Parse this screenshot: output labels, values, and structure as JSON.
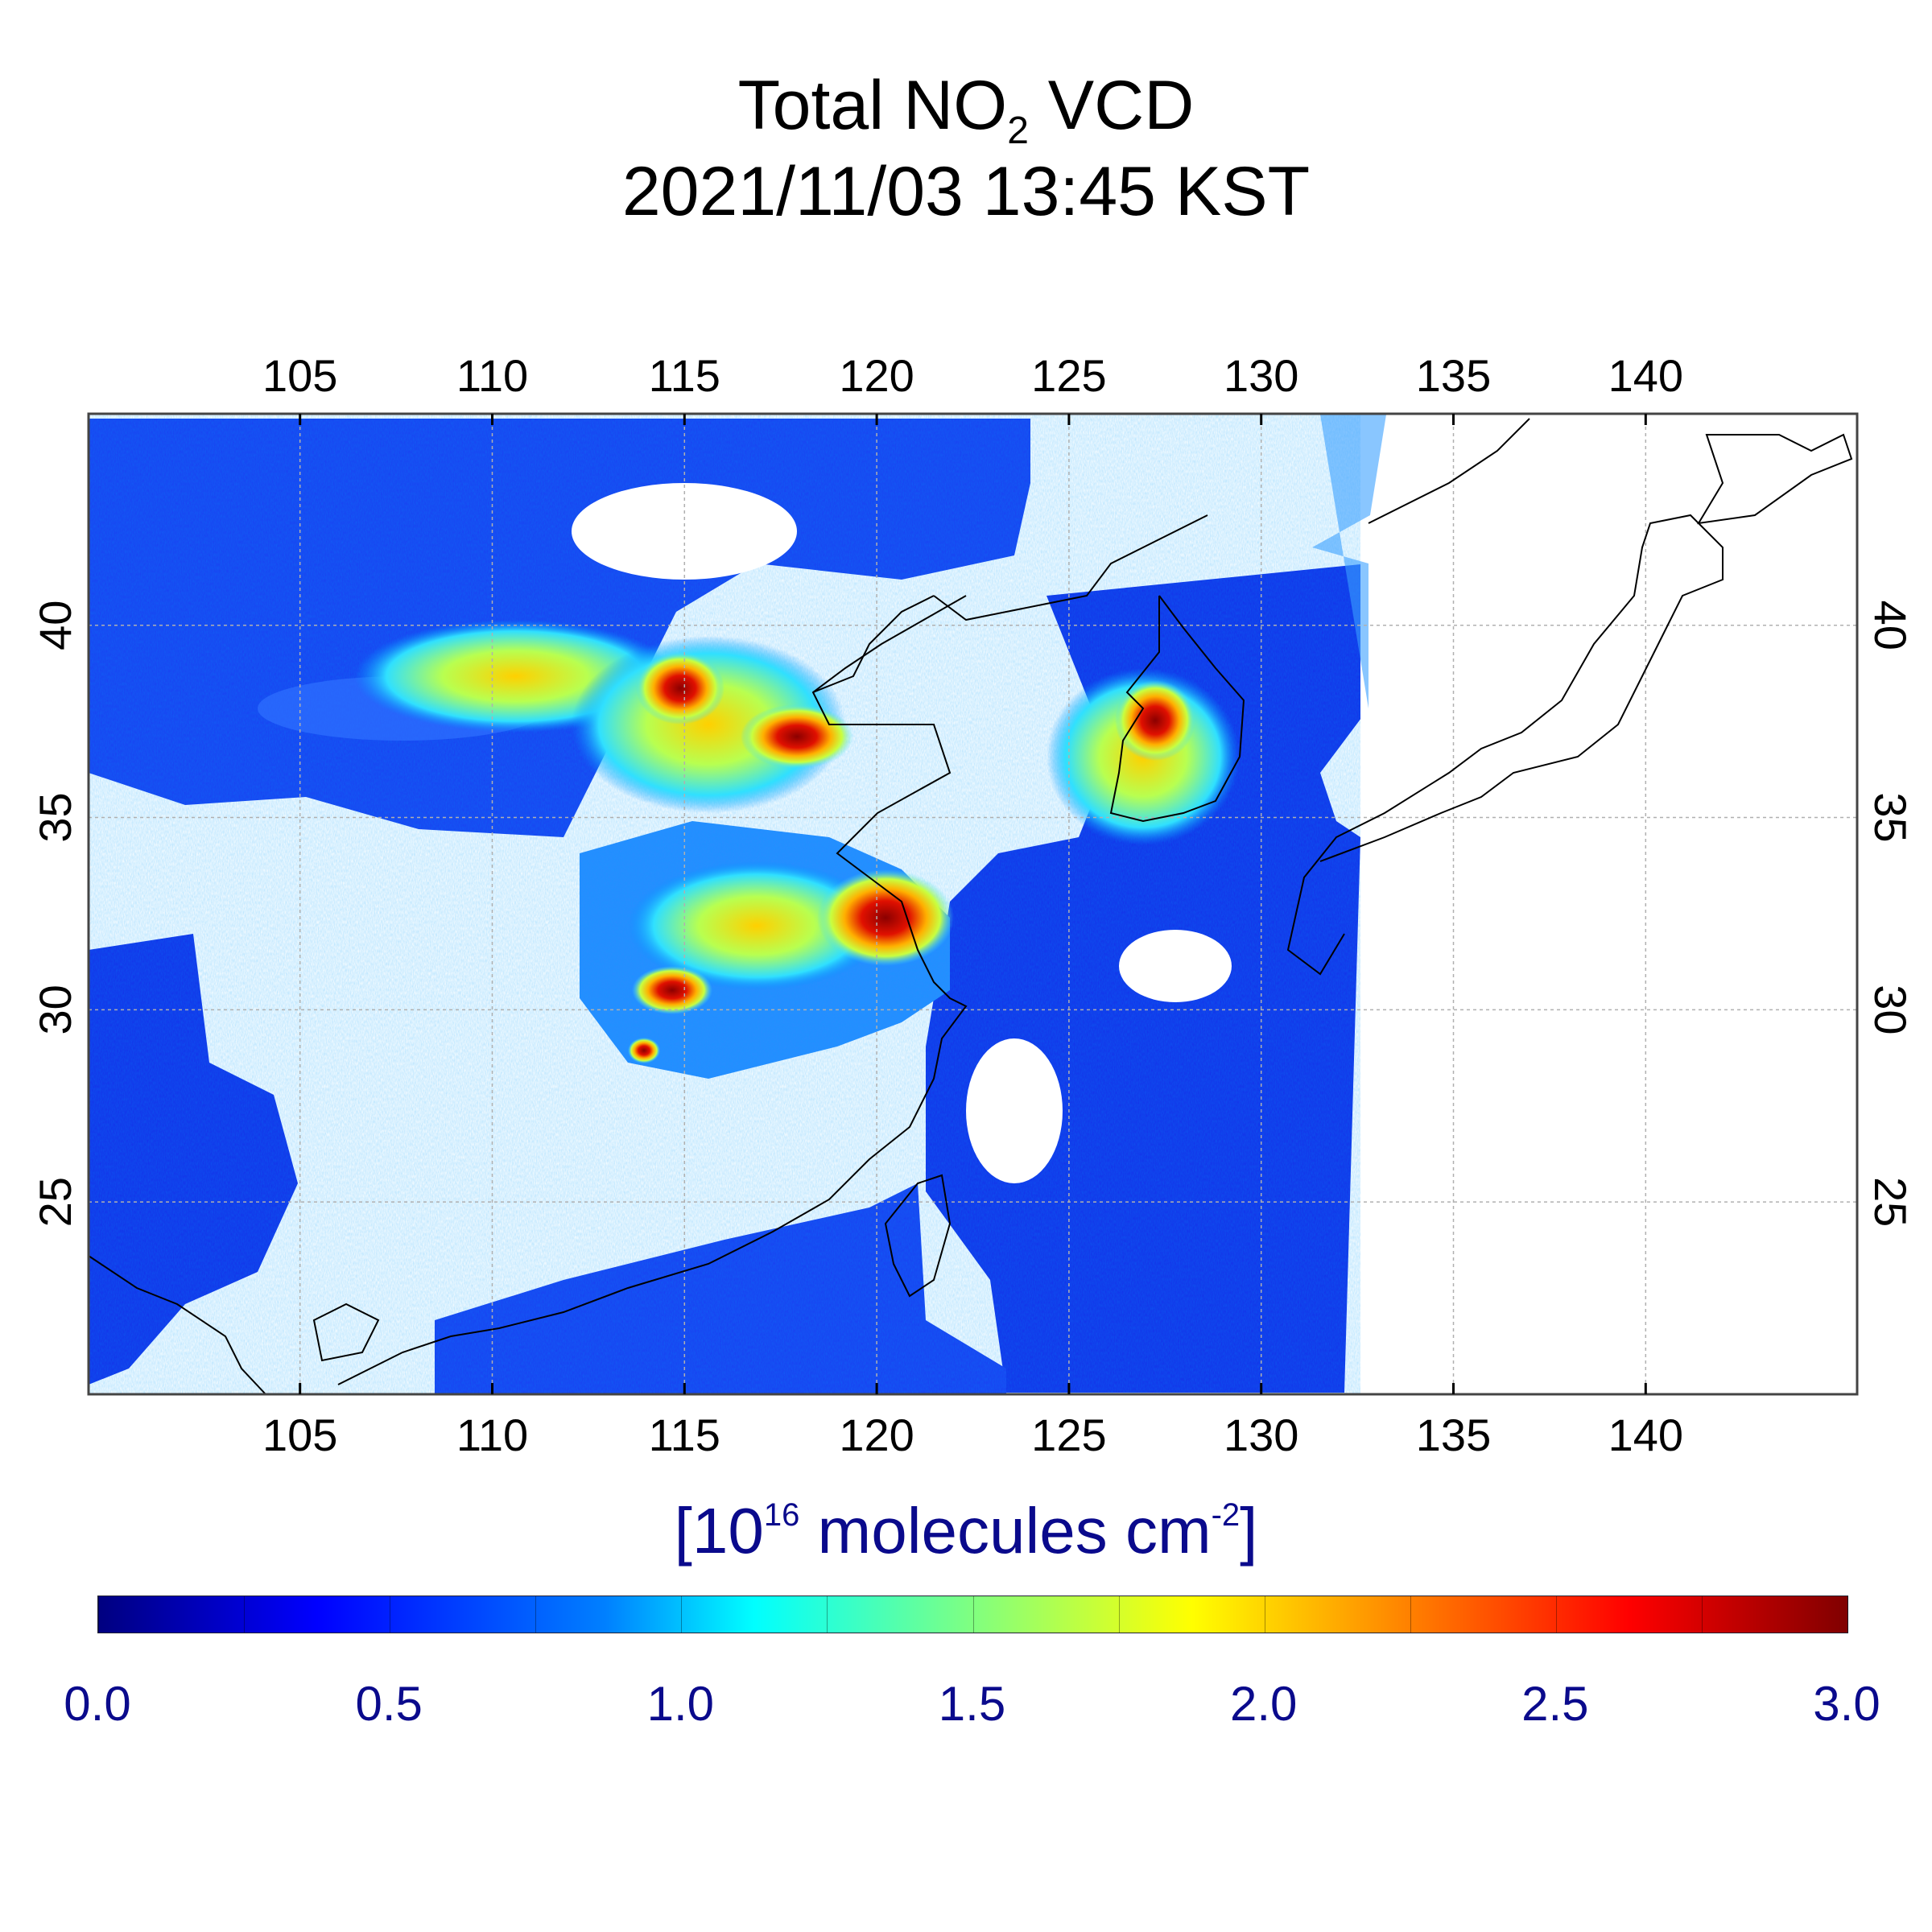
{
  "title": {
    "line1_prefix": "Total NO",
    "line1_sub": "2",
    "line1_suffix": " VCD",
    "line2": "2021/11/03 13:45 KST"
  },
  "map": {
    "projection": "lat-lon",
    "lon_range": [
      99.5,
      145.5
    ],
    "lat_range": [
      20,
      45.5
    ],
    "lon_ticks": [
      "105",
      "110",
      "115",
      "120",
      "125",
      "130",
      "135",
      "140"
    ],
    "lat_ticks": [
      "25",
      "30",
      "35",
      "40"
    ],
    "grid": true,
    "missing_color": "#ffffff"
  },
  "units": {
    "prefix": "[10",
    "exp": "16",
    "middle": " molecules cm",
    "exp2": "-2",
    "suffix": "]"
  },
  "colorbar": {
    "min": 0.0,
    "max": 3.0,
    "colormap": "jet",
    "tick_labels": [
      "0.0",
      "0.5",
      "1.0",
      "1.5",
      "2.0",
      "2.5",
      "3.0"
    ]
  },
  "colors": {
    "text": "#000000",
    "units_text": "#0a0a8c",
    "grid": "#aaaaaa",
    "coastline": "#000000"
  }
}
